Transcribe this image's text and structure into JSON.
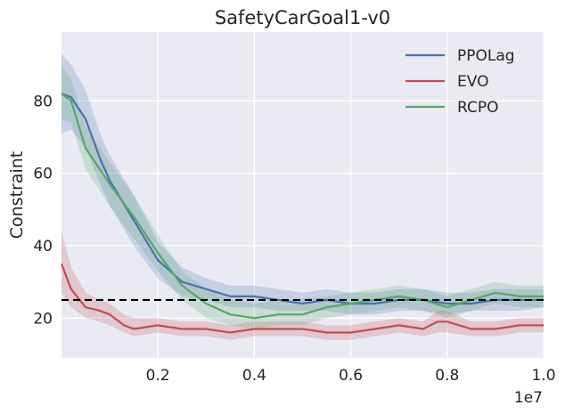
{
  "chart_data": {
    "type": "line",
    "title": "SafetyCarGoal1-v0",
    "xlabel": "",
    "ylabel": "Constraint",
    "x_offset_label": "1e7",
    "xlim": [
      0,
      1.0
    ],
    "ylim": [
      9,
      99
    ],
    "xticks": [
      0.2,
      0.4,
      0.6,
      0.8,
      1.0
    ],
    "xtick_labels": [
      "0.2",
      "0.4",
      "0.6",
      "0.8",
      "1.0"
    ],
    "yticks": [
      20,
      40,
      60,
      80
    ],
    "ytick_labels": [
      "20",
      "40",
      "60",
      "80"
    ],
    "grid": true,
    "legend_position": "top-right",
    "threshold": {
      "value": 25,
      "style": "dashed",
      "color": "#000000"
    },
    "series": [
      {
        "name": "PPOLag",
        "color": "#4c72b0",
        "x": [
          0.0,
          0.02,
          0.05,
          0.08,
          0.1,
          0.15,
          0.2,
          0.25,
          0.3,
          0.35,
          0.4,
          0.45,
          0.5,
          0.55,
          0.6,
          0.65,
          0.7,
          0.75,
          0.8,
          0.85,
          0.9,
          0.95,
          1.0
        ],
        "values": [
          82,
          81,
          75,
          64,
          58,
          47,
          36,
          30,
          28,
          26,
          26,
          25,
          24,
          25,
          24,
          24,
          25,
          25,
          24,
          24,
          25,
          25,
          25
        ],
        "lower": [
          71,
          72,
          67,
          57,
          51,
          40,
          31,
          26,
          25,
          23,
          23,
          22,
          22,
          22,
          21,
          21,
          22,
          22,
          21,
          22,
          22,
          22,
          23
        ],
        "upper": [
          93,
          90,
          83,
          71,
          65,
          54,
          41,
          34,
          31,
          29,
          29,
          28,
          27,
          28,
          27,
          27,
          28,
          28,
          27,
          27,
          28,
          28,
          28
        ]
      },
      {
        "name": "EVO",
        "color": "#c44e52",
        "x": [
          0.0,
          0.02,
          0.05,
          0.08,
          0.1,
          0.13,
          0.15,
          0.2,
          0.25,
          0.3,
          0.35,
          0.4,
          0.45,
          0.5,
          0.55,
          0.6,
          0.65,
          0.7,
          0.75,
          0.78,
          0.8,
          0.85,
          0.9,
          0.95,
          1.0
        ],
        "values": [
          35,
          28,
          23,
          22,
          21,
          18,
          17,
          18,
          17,
          17,
          16,
          17,
          17,
          17,
          16,
          16,
          17,
          18,
          17,
          19,
          19,
          17,
          17,
          18,
          18
        ],
        "lower": [
          27,
          23,
          20,
          19,
          18,
          16,
          15,
          16,
          15,
          15,
          14,
          15,
          15,
          15,
          14,
          14,
          15,
          16,
          15,
          16,
          16,
          15,
          15,
          16,
          16
        ],
        "upper": [
          44,
          34,
          27,
          25,
          24,
          21,
          20,
          20,
          19,
          19,
          18,
          19,
          19,
          19,
          18,
          18,
          19,
          20,
          19,
          22,
          22,
          19,
          19,
          20,
          20
        ]
      },
      {
        "name": "RCPO",
        "color": "#55a868",
        "x": [
          0.0,
          0.02,
          0.05,
          0.08,
          0.1,
          0.15,
          0.2,
          0.25,
          0.3,
          0.35,
          0.4,
          0.45,
          0.5,
          0.55,
          0.6,
          0.65,
          0.7,
          0.75,
          0.8,
          0.85,
          0.9,
          0.95,
          1.0
        ],
        "values": [
          82,
          80,
          67,
          61,
          57,
          48,
          38,
          29,
          24,
          21,
          20,
          21,
          21,
          23,
          24,
          25,
          26,
          25,
          23,
          25,
          27,
          26,
          26
        ],
        "lower": [
          75,
          74,
          61,
          55,
          51,
          42,
          33,
          25,
          20,
          18,
          17,
          18,
          18,
          20,
          21,
          22,
          23,
          22,
          20,
          22,
          24,
          23,
          23
        ],
        "upper": [
          90,
          86,
          73,
          67,
          63,
          54,
          43,
          33,
          28,
          25,
          24,
          25,
          25,
          26,
          27,
          28,
          29,
          28,
          26,
          28,
          30,
          29,
          29
        ]
      }
    ]
  }
}
